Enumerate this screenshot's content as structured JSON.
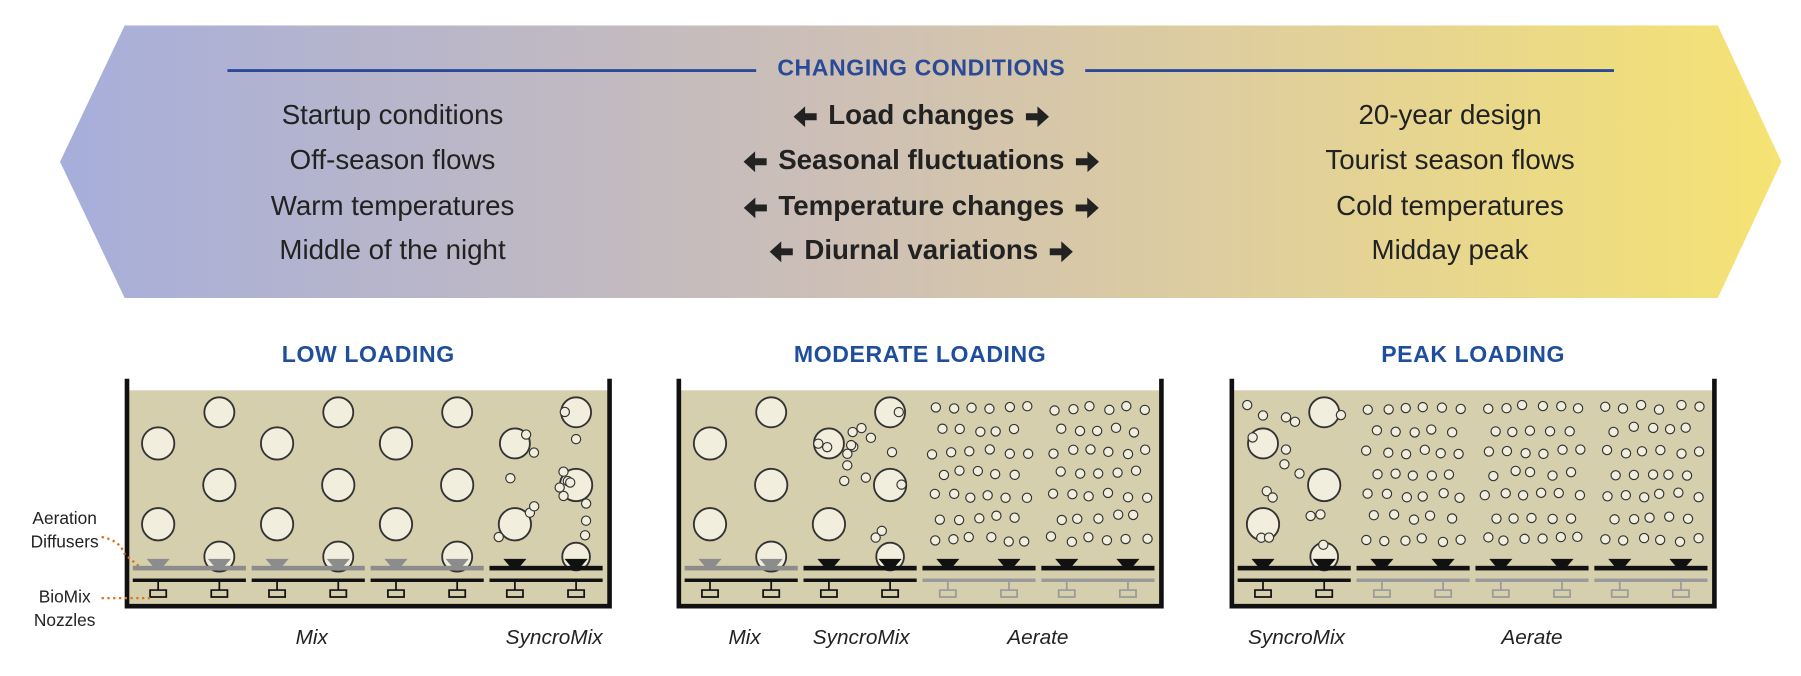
{
  "header": {
    "title": "CHANGING CONDITIONS",
    "left": [
      "Startup conditions",
      "Off-season flows",
      "Warm temperatures",
      "Middle of the night"
    ],
    "center": [
      "Load changes",
      "Seasonal fluctuations",
      "Temperature changes",
      "Diurnal variations"
    ],
    "right": [
      "20-year design",
      "Tourist season flows",
      "Cold temperatures",
      "Midday peak"
    ]
  },
  "panels": [
    {
      "title": "LOW LOADING",
      "labels": [
        "Mix",
        "SyncroMix"
      ]
    },
    {
      "title": "MODERATE LOADING",
      "labels": [
        "Mix",
        "SyncroMix",
        "Aerate"
      ]
    },
    {
      "title": "PEAK LOADING",
      "labels": [
        "SyncroMix",
        "Aerate"
      ]
    }
  ],
  "callouts": {
    "diffusers": [
      "Aeration",
      "Diffusers"
    ],
    "nozzles": [
      "BioMix",
      "Nozzles"
    ]
  }
}
